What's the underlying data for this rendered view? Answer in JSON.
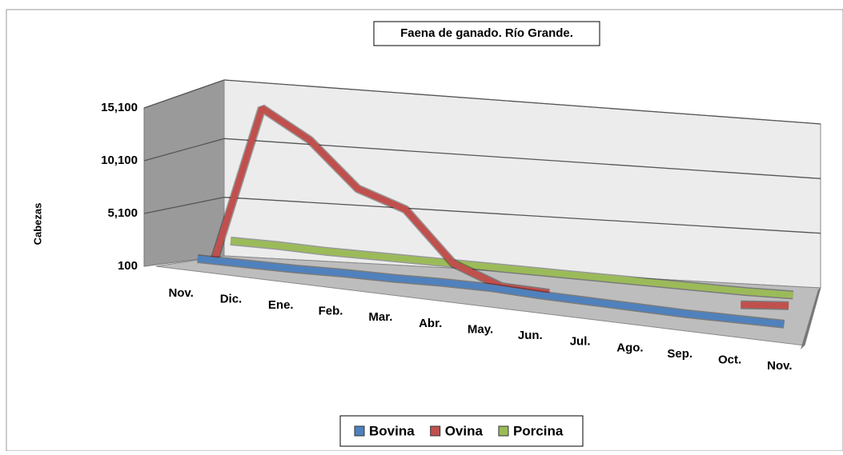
{
  "chart_data": {
    "type": "line3d",
    "title": "Faena de ganado. Río Grande.",
    "ylabel": "Cabezas",
    "categories": [
      "Nov.",
      "Dic.",
      "Ene.",
      "Feb.",
      "Mar.",
      "Abr.",
      "May.",
      "Jun.",
      "Jul.",
      "Ago.",
      "Sep.",
      "Oct.",
      "Nov."
    ],
    "series": [
      {
        "name": "Bovina",
        "color": "#4f81bd",
        "values": [
          800,
          800,
          800,
          900,
          900,
          1000,
          1000,
          800,
          700,
          600,
          500,
          500,
          500
        ]
      },
      {
        "name": "Ovina",
        "color": "#c0504d",
        "values": [
          300,
          14500,
          12000,
          8000,
          6500,
          2000,
          300,
          100,
          null,
          null,
          null,
          600,
          900
        ]
      },
      {
        "name": "Porcina",
        "color": "#9bbb59",
        "values": [
          1800,
          1700,
          1500,
          1400,
          1300,
          1200,
          1100,
          1000,
          900,
          800,
          700,
          600,
          600
        ]
      }
    ],
    "ylim": [
      100,
      15100
    ],
    "yticks": [
      100,
      {
        "value": 5100,
        "label": "5,100"
      },
      {
        "value": 10100,
        "label": "10,100"
      },
      {
        "value": 15100,
        "label": "15,100"
      }
    ],
    "grid": true,
    "legend": "bottom"
  }
}
